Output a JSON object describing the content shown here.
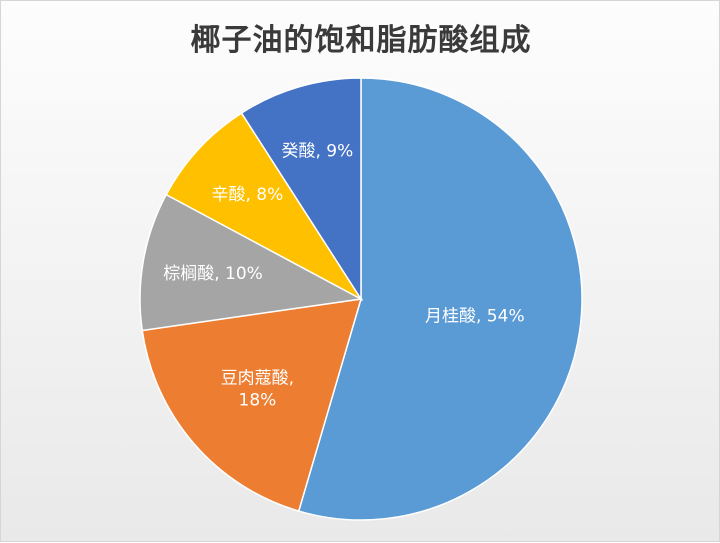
{
  "chart_data": {
    "type": "pie",
    "title": "椰子油的饱和脂肪酸组成",
    "start_angle_deg": 0,
    "direction": "clockwise",
    "slices": [
      {
        "name": "月桂酸",
        "value": 54,
        "label": "月桂酸, 54%",
        "color": "#5B9BD5"
      },
      {
        "name": "豆肉蔻酸",
        "value": 18,
        "label": "豆肉蔻酸,|18%",
        "color": "#ED7D31"
      },
      {
        "name": "棕榈酸",
        "value": 10,
        "label": "棕榈酸, 10%",
        "color": "#A5A5A5"
      },
      {
        "name": "辛酸",
        "value": 8,
        "label": "辛酸, 8%",
        "color": "#FFC000"
      },
      {
        "name": "癸酸",
        "value": 9,
        "label": "癸酸, 9%",
        "color": "#4472C4"
      }
    ],
    "legend": "none"
  }
}
